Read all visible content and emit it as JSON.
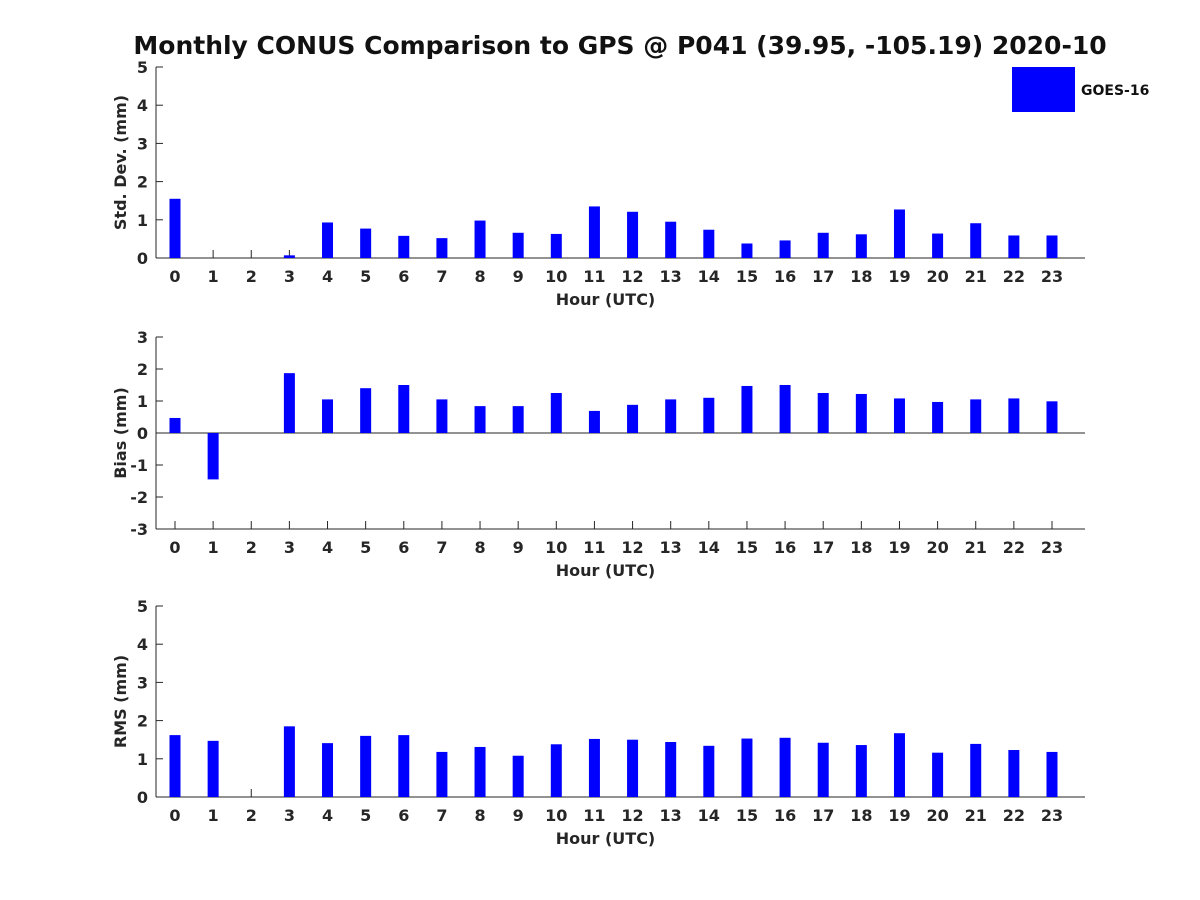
{
  "figure": {
    "title": "Monthly CONUS Comparison to GPS @ P041 (39.95, -105.19) 2020-10"
  },
  "legend": {
    "label": "GOES-16",
    "color": "#0000ff",
    "placement": "top-right"
  },
  "chart_data": [
    {
      "type": "bar",
      "ylabel": "Std. Dev. (mm)",
      "xlabel": "Hour (UTC)",
      "ylim": [
        0,
        5
      ],
      "yticks": [
        0,
        1,
        2,
        3,
        4,
        5
      ],
      "categories": [
        "0",
        "1",
        "2",
        "3",
        "4",
        "5",
        "6",
        "7",
        "8",
        "9",
        "10",
        "11",
        "12",
        "13",
        "14",
        "15",
        "16",
        "17",
        "18",
        "19",
        "20",
        "21",
        "22",
        "23"
      ],
      "series": [
        {
          "name": "GOES-16",
          "color": "#0000ff",
          "values": [
            1.55,
            0,
            0,
            0.07,
            0.93,
            0.77,
            0.58,
            0.52,
            0.98,
            0.66,
            0.63,
            1.35,
            1.21,
            0.95,
            0.74,
            0.38,
            0.46,
            0.66,
            0.62,
            1.27,
            0.64,
            0.91,
            0.59,
            0.59
          ]
        }
      ]
    },
    {
      "type": "bar",
      "ylabel": "Bias (mm)",
      "xlabel": "Hour (UTC)",
      "ylim": [
        -3,
        3
      ],
      "yticks": [
        -3,
        -2,
        -1,
        0,
        1,
        2,
        3
      ],
      "zero_line": true,
      "categories": [
        "0",
        "1",
        "2",
        "3",
        "4",
        "5",
        "6",
        "7",
        "8",
        "9",
        "10",
        "11",
        "12",
        "13",
        "14",
        "15",
        "16",
        "17",
        "18",
        "19",
        "20",
        "21",
        "22",
        "23"
      ],
      "series": [
        {
          "name": "GOES-16",
          "color": "#0000ff",
          "values": [
            0.47,
            -1.45,
            0,
            1.87,
            1.05,
            1.4,
            1.5,
            1.05,
            0.84,
            0.84,
            1.25,
            0.69,
            0.88,
            1.05,
            1.1,
            1.47,
            1.5,
            1.25,
            1.22,
            1.08,
            0.97,
            1.05,
            1.08,
            0.99
          ]
        }
      ]
    },
    {
      "type": "bar",
      "ylabel": "RMS (mm)",
      "xlabel": "Hour (UTC)",
      "ylim": [
        0,
        5
      ],
      "yticks": [
        0,
        1,
        2,
        3,
        4,
        5
      ],
      "categories": [
        "0",
        "1",
        "2",
        "3",
        "4",
        "5",
        "6",
        "7",
        "8",
        "9",
        "10",
        "11",
        "12",
        "13",
        "14",
        "15",
        "16",
        "17",
        "18",
        "19",
        "20",
        "21",
        "22",
        "23"
      ],
      "series": [
        {
          "name": "GOES-16",
          "color": "#0000ff",
          "values": [
            1.62,
            1.47,
            0,
            1.85,
            1.41,
            1.6,
            1.62,
            1.18,
            1.31,
            1.08,
            1.38,
            1.52,
            1.5,
            1.44,
            1.34,
            1.53,
            1.55,
            1.42,
            1.36,
            1.67,
            1.16,
            1.39,
            1.23,
            1.18
          ]
        }
      ]
    }
  ]
}
